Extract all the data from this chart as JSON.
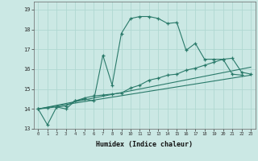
{
  "xlabel": "Humidex (Indice chaleur)",
  "bg_color": "#cbe8e4",
  "grid_color": "#b0d8d2",
  "line_color": "#2a7a6a",
  "x_values": [
    0,
    1,
    2,
    3,
    4,
    5,
    6,
    7,
    8,
    9,
    10,
    11,
    12,
    13,
    14,
    15,
    16,
    17,
    18,
    19,
    20,
    21,
    22,
    23
  ],
  "series1": [
    14.0,
    13.2,
    14.1,
    14.0,
    14.4,
    14.5,
    14.4,
    16.7,
    15.2,
    17.8,
    18.55,
    18.65,
    18.65,
    18.55,
    18.3,
    18.35,
    16.95,
    17.3,
    16.5,
    16.5,
    16.5,
    15.75,
    15.7,
    null
  ],
  "series2": [
    14.0,
    14.05,
    14.1,
    14.15,
    14.4,
    14.55,
    14.65,
    14.7,
    14.75,
    14.8,
    15.05,
    15.2,
    15.45,
    15.55,
    15.7,
    15.75,
    15.95,
    16.05,
    16.2,
    16.35,
    16.5,
    16.55,
    15.85,
    15.75
  ],
  "series3_x": [
    0,
    23
  ],
  "series3_y": [
    14.0,
    15.7
  ],
  "series4_x": [
    0,
    23
  ],
  "series4_y": [
    14.0,
    16.1
  ],
  "ylim": [
    13.0,
    19.4
  ],
  "xlim": [
    -0.5,
    23.5
  ],
  "yticks": [
    13,
    14,
    15,
    16,
    17,
    18,
    19
  ],
  "xticks": [
    0,
    1,
    2,
    3,
    4,
    5,
    6,
    7,
    8,
    9,
    10,
    11,
    12,
    13,
    14,
    15,
    16,
    17,
    18,
    19,
    20,
    21,
    22,
    23
  ]
}
